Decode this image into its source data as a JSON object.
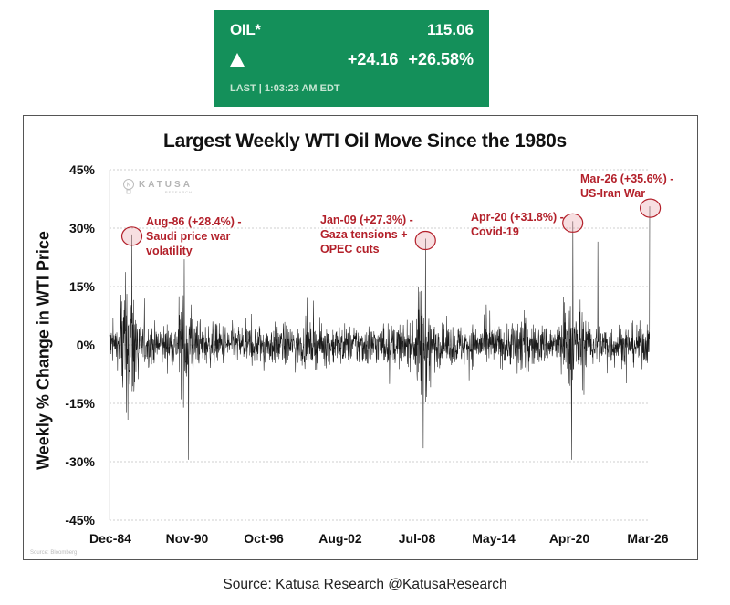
{
  "ticker": {
    "symbol": "OIL*",
    "price": "115.06",
    "direction": "up-arrow",
    "change": "+24.16",
    "change_pct": "+26.58%",
    "last_updated": "LAST | 1:03:23 AM EDT",
    "background_color": "#14905a"
  },
  "chart": {
    "title": "Largest Weekly WTI Oil Move Since the 1980s",
    "ylabel": "Weekly % Change in WTI Price",
    "watermark": {
      "name": "KATUSA",
      "sub": "RESEARCH"
    },
    "data_source": "Source: Bloomberg",
    "yticks": [
      "45%",
      "30%",
      "15%",
      "0%",
      "-15%",
      "-30%",
      "-45%"
    ],
    "xticks": [
      "Dec-84",
      "Nov-90",
      "Oct-96",
      "Aug-02",
      "Jul-08",
      "May-14",
      "Apr-20",
      "Mar-26"
    ],
    "annotations": [
      {
        "line1": "Aug-86 (+28.4%) -",
        "line2": "Saudi price war",
        "line3": "volatility"
      },
      {
        "line1": "Jan-09 (+27.3%) -",
        "line2": "Gaza tensions +",
        "line3": "OPEC cuts"
      },
      {
        "line1": "Apr-20 (+31.8%) -",
        "line2": "Covid-19",
        "line3": ""
      },
      {
        "line1": "Mar-26 (+35.6%) -",
        "line2": "US-Iran War",
        "line3": ""
      }
    ],
    "highlight_color": "#b3202a"
  },
  "footer": {
    "source": "Source: Katusa Research @KatusaResearch"
  },
  "chart_data": {
    "type": "line",
    "title": "Largest Weekly WTI Oil Move Since the 1980s",
    "xlabel": "",
    "ylabel": "Weekly % Change in WTI Price",
    "ylim": [
      -45,
      45
    ],
    "yticks": [
      45,
      30,
      15,
      0,
      -15,
      -30,
      -45
    ],
    "xlim": [
      "Dec-84",
      "Mar-26"
    ],
    "xticks": [
      "Dec-84",
      "Nov-90",
      "Oct-96",
      "Aug-02",
      "Jul-08",
      "May-14",
      "Apr-20",
      "Mar-26"
    ],
    "grid": "horizontal dashed",
    "legend": "none",
    "series": [
      {
        "name": "Weekly % change in WTI",
        "frequency": "weekly",
        "typical_range": [
          -8,
          8
        ],
        "notable_points": [
          {
            "date": "Aug-86",
            "value": 28.4,
            "label": "Saudi price war volatility",
            "highlighted": true
          },
          {
            "date": "Apr-86",
            "value": -17.5
          },
          {
            "date": "Aug-90",
            "value": 22
          },
          {
            "date": "Jan-91",
            "value": -29.5
          },
          {
            "date": "Dec-08",
            "value": -26.5
          },
          {
            "date": "Jan-09",
            "value": 27.3,
            "label": "Gaza tensions + OPEC cuts",
            "highlighted": true
          },
          {
            "date": "Apr-20",
            "value": 31.8,
            "label": "Covid-19",
            "highlighted": true
          },
          {
            "date": "Apr-20",
            "value": -29.5
          },
          {
            "date": "Mar-22",
            "value": 26.5
          },
          {
            "date": "Mar-26",
            "value": 35.6,
            "label": "US-Iran War",
            "highlighted": true
          }
        ]
      }
    ]
  }
}
